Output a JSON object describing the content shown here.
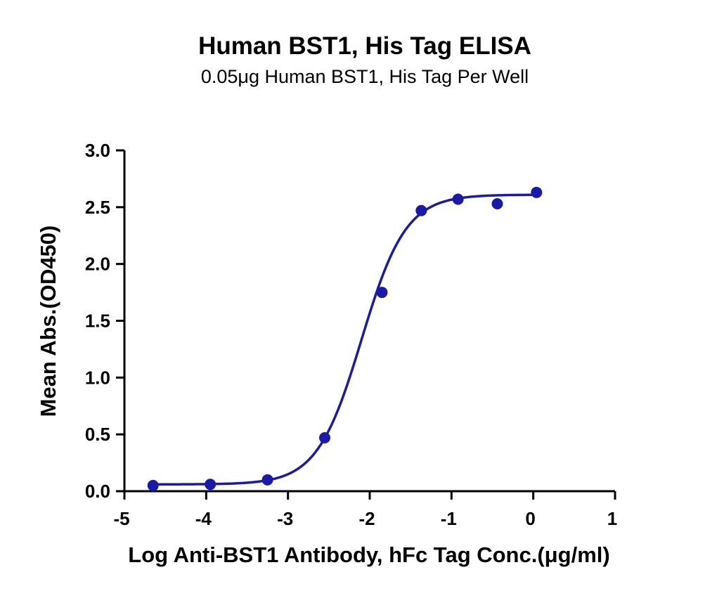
{
  "chart_data": {
    "type": "scatter",
    "title": "Human BST1, His Tag ELISA",
    "subtitle": "0.05μg Human BST1, His Tag Per Well",
    "xlabel": "Log Anti-BST1 Antibody, hFc Tag Conc.(μg/ml)",
    "ylabel": "Mean Abs.(OD450)",
    "xlim": [
      -5,
      1
    ],
    "ylim": [
      0,
      3
    ],
    "x_ticks": [
      -5,
      -4,
      -3,
      -2,
      -1,
      0,
      1
    ],
    "y_ticks": [
      0.0,
      0.5,
      1.0,
      1.5,
      2.0,
      2.5,
      3.0
    ],
    "x_tick_labels": [
      "-5",
      "-4",
      "-3",
      "-2",
      "-1",
      "0",
      "1"
    ],
    "y_tick_labels": [
      "0.0",
      "0.5",
      "1.0",
      "1.5",
      "2.0",
      "2.5",
      "3.0"
    ],
    "grid": false,
    "color": "#1a1aa6",
    "series": [
      {
        "points": [
          {
            "x": -4.65,
            "y": 0.05
          },
          {
            "x": -3.95,
            "y": 0.06
          },
          {
            "x": -3.25,
            "y": 0.1
          },
          {
            "x": -2.55,
            "y": 0.47
          },
          {
            "x": -1.85,
            "y": 1.75
          },
          {
            "x": -1.37,
            "y": 2.47
          },
          {
            "x": -0.92,
            "y": 2.57
          },
          {
            "x": -0.44,
            "y": 2.53
          },
          {
            "x": 0.04,
            "y": 2.63
          }
        ],
        "fit": {
          "model": "4PL",
          "bottom": 0.06,
          "top": 2.61,
          "logEC50": -2.1,
          "hill": 1.6
        }
      }
    ]
  }
}
